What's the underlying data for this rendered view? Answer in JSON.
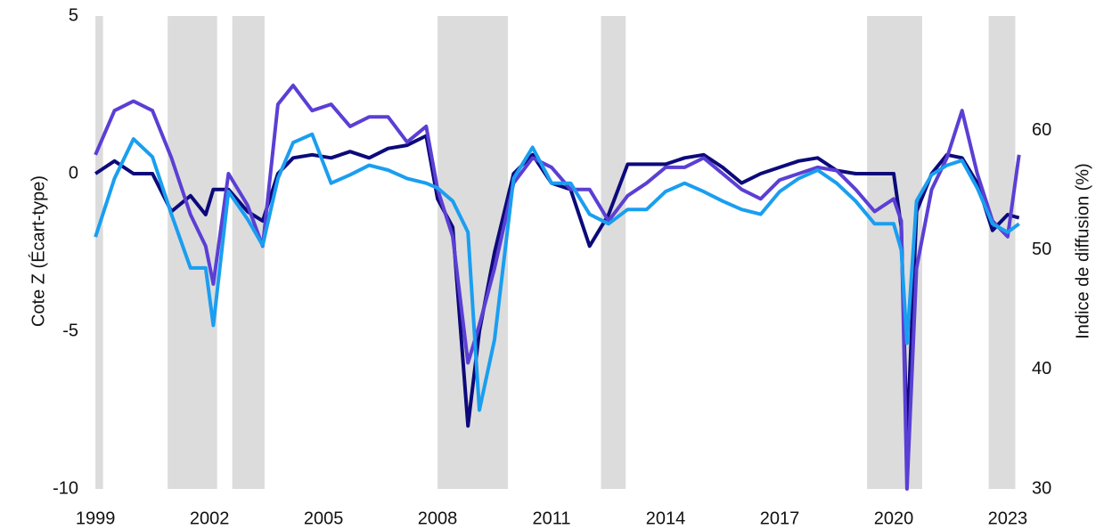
{
  "chart_data": {
    "type": "line",
    "y_label": "Cote Z (Écart-type)",
    "y2_label": "Indice de diffusion (%)",
    "x": [
      1999.0,
      1999.5,
      2000.0,
      2000.5,
      2001.0,
      2001.5,
      2001.9,
      2002.1,
      2002.5,
      2003.0,
      2003.4,
      2003.8,
      2004.2,
      2004.7,
      2005.2,
      2005.7,
      2006.2,
      2006.7,
      2007.2,
      2007.7,
      2008.0,
      2008.4,
      2008.8,
      2009.1,
      2009.5,
      2010.0,
      2010.5,
      2011.0,
      2011.5,
      2012.0,
      2012.5,
      2013.0,
      2013.5,
      2014.0,
      2014.5,
      2015.0,
      2015.5,
      2016.0,
      2016.5,
      2017.0,
      2017.5,
      2018.0,
      2018.5,
      2019.0,
      2019.5,
      2020.0,
      2020.2,
      2020.35,
      2020.6,
      2021.0,
      2021.4,
      2021.8,
      2022.2,
      2022.6,
      2023.0,
      2023.3
    ],
    "series": [
      {
        "color": "#0c0a7a",
        "axis": "y",
        "values": [
          0,
          0.4,
          0,
          0,
          -1.2,
          -0.7,
          -1.3,
          -0.5,
          -0.5,
          -1.2,
          -1.5,
          0,
          0.5,
          0.6,
          0.5,
          0.7,
          0.5,
          0.8,
          0.9,
          1.2,
          -0.8,
          -1.7,
          -8.0,
          -5.0,
          -2.5,
          0,
          0.6,
          -0.3,
          -0.5,
          -2.3,
          -1.3,
          0.3,
          0.3,
          0.3,
          0.5,
          0.6,
          0.2,
          -0.3,
          0,
          0.2,
          0.4,
          0.5,
          0.1,
          0,
          0,
          0,
          -1.7,
          -8.5,
          -1.2,
          0,
          0.6,
          0.5,
          -0.3,
          -1.8,
          -1.3,
          -1.4
        ]
      },
      {
        "color": "#5b3fd4",
        "axis": "y",
        "values": [
          0.6,
          2.0,
          2.3,
          2.0,
          0.5,
          -1.3,
          -2.3,
          -3.5,
          0,
          -1.0,
          -2.3,
          2.2,
          2.8,
          2.0,
          2.2,
          1.5,
          1.8,
          1.8,
          1.0,
          1.5,
          -0.5,
          -2.0,
          -6.0,
          -4.8,
          -3.0,
          -0.3,
          0.5,
          0.2,
          -0.5,
          -0.5,
          -1.5,
          -0.7,
          -0.3,
          0.2,
          0.2,
          0.5,
          0,
          -0.5,
          -0.8,
          -0.2,
          0,
          0.2,
          0.1,
          -0.5,
          -1.2,
          -0.8,
          -1.5,
          -10,
          -3.0,
          -0.5,
          0.5,
          2.0,
          0,
          -1.5,
          -2.0,
          0.6
        ]
      },
      {
        "color": "#1a9ef0",
        "axis": "y2",
        "values": [
          51.1,
          56,
          59.3,
          57.8,
          53,
          48.5,
          48.5,
          43.7,
          54.9,
          52.6,
          50.4,
          56,
          59,
          59.7,
          55.6,
          56.3,
          57.1,
          56.7,
          56,
          55.6,
          55.2,
          54.1,
          51.5,
          36.6,
          42.5,
          56,
          58.6,
          55.6,
          55.6,
          53,
          52.2,
          53.4,
          53.4,
          54.9,
          55.6,
          54.9,
          54.1,
          53.4,
          53,
          54.9,
          56,
          56.7,
          55.6,
          54.1,
          52.2,
          52.2,
          50,
          42.2,
          54.1,
          56.3,
          57.1,
          57.5,
          55.2,
          52.2,
          51.5,
          52.2
        ]
      }
    ],
    "shaded_periods": [
      [
        1999.0,
        1999.2
      ],
      [
        2000.9,
        2002.2
      ],
      [
        2002.6,
        2003.45
      ],
      [
        2008.0,
        2009.85
      ],
      [
        2012.3,
        2012.95
      ],
      [
        2019.3,
        2020.75
      ],
      [
        2022.5,
        2023.2
      ]
    ],
    "shade_color": "#dcdcdc",
    "xlim": [
      1998.95,
      2023.4
    ],
    "xticks": [
      1999,
      2002,
      2005,
      2008,
      2011,
      2014,
      2017,
      2020,
      2023
    ],
    "ylim": [
      -10,
      5
    ],
    "yticks": [
      -10,
      -5,
      0,
      5
    ],
    "y2lim": [
      30,
      69.6
    ],
    "y2ticks": [
      30,
      40,
      50,
      60
    ]
  }
}
